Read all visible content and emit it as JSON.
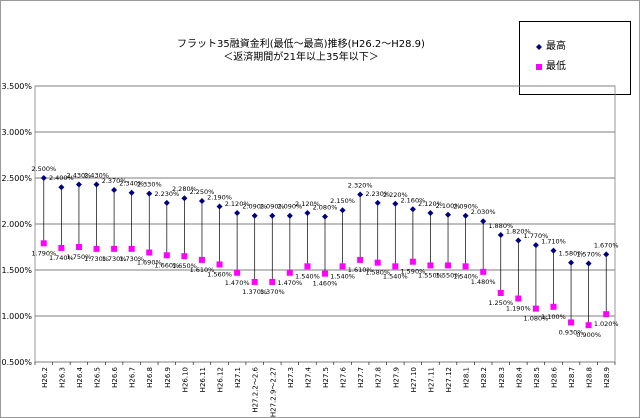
{
  "chart_data": {
    "type": "line",
    "title": "フラット35融資金利(最低～最高)推移(H26.2～H28.9)",
    "subtitle": "＜返済期間が21年以上35年以下＞",
    "xlabel": "",
    "ylabel": "",
    "ylim": [
      0.5,
      3.5
    ],
    "y_ticks": [
      "0.500%",
      "1.000%",
      "1.500%",
      "2.000%",
      "2.500%",
      "3.000%",
      "3.500%"
    ],
    "grid": true,
    "legend_position": "top-right",
    "categories": [
      "H26.2",
      "H26.3",
      "H26.4",
      "H26.5",
      "H26.6",
      "H26.7",
      "H26.8",
      "H26.9",
      "H26.10",
      "H26.11",
      "H26.12",
      "H27.1",
      "H27.2.2～2.6",
      "H27.2.9～2.27",
      "H27.3",
      "H27.4",
      "H27.5",
      "H27.6",
      "H27.7",
      "H27.8",
      "H27.9",
      "H27.10",
      "H27.11",
      "H27.12",
      "H28.1",
      "H28.2",
      "H28.3",
      "H28.4",
      "H28.5",
      "H28.6",
      "H28.7",
      "H28.8",
      "H28.9"
    ],
    "series": [
      {
        "name": "最高",
        "color": "#000080",
        "marker": "diamond",
        "values": [
          2.5,
          2.4,
          2.43,
          2.43,
          2.37,
          2.34,
          2.33,
          2.23,
          2.28,
          2.25,
          2.19,
          2.12,
          2.09,
          2.09,
          2.09,
          2.12,
          2.08,
          2.15,
          2.32,
          2.23,
          2.22,
          2.16,
          2.12,
          2.1,
          2.09,
          2.03,
          1.88,
          1.82,
          1.77,
          1.71,
          1.58,
          1.57,
          1.67
        ],
        "labels": [
          "2.500%",
          "2.400%",
          "2.430%",
          "2.430%",
          "2.370%",
          "2.340%",
          "2.330%",
          "2.230%",
          "2.280%",
          "2.250%",
          "2.190%",
          "2.120%",
          "2.090%",
          "2.090%",
          "2.090%",
          "2.120%",
          "2.080%",
          "2.150%",
          "2.320%",
          "2.230%",
          "2.220%",
          "2.160%",
          "2.120%",
          "2.100%",
          "2.090%",
          "2.030%",
          "1.880%",
          "1.820%",
          "1.770%",
          "1.710%",
          "1.580%",
          "1.570%",
          "1.670%"
        ]
      },
      {
        "name": "最低",
        "color": "#ff00ff",
        "marker": "square",
        "values": [
          1.79,
          1.74,
          1.75,
          1.73,
          1.73,
          1.73,
          1.69,
          1.66,
          1.65,
          1.61,
          1.56,
          1.47,
          1.37,
          1.37,
          1.47,
          1.54,
          1.46,
          1.54,
          1.61,
          1.58,
          1.54,
          1.59,
          1.55,
          1.55,
          1.54,
          1.48,
          1.25,
          1.19,
          1.08,
          1.1,
          0.93,
          0.9,
          1.02
        ],
        "labels": [
          "1.790%",
          "1.740%",
          "1.750%",
          "1.730%",
          "1.730%",
          "1.730%",
          "1.690%",
          "1.660%",
          "1.650%",
          "1.610%",
          "1.560%",
          "1.470%",
          "1.370%",
          "1.370%",
          "1.470%",
          "1.540%",
          "1.460%",
          "1.540%",
          "1.610%",
          "1.580%",
          "1.540%",
          "1.590%",
          "1.550%",
          "1.550%",
          "1.540%",
          "1.480%",
          "1.250%",
          "1.190%",
          "1.080%",
          "1.100%",
          "0.930%",
          "0.900%",
          "1.020%"
        ]
      }
    ]
  }
}
